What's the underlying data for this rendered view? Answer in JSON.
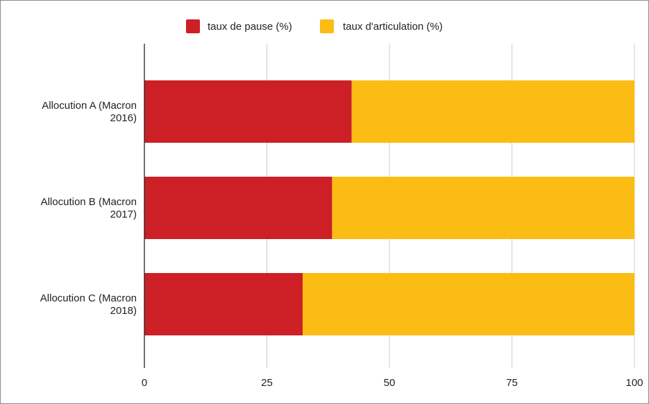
{
  "chart_data": {
    "type": "bar",
    "orientation": "horizontal",
    "stacked": true,
    "categories": [
      "Allocution A (Macron 2016)",
      "Allocution B (Macron 2017)",
      "Allocution C (Macron 2018)"
    ],
    "category_label_lines": [
      [
        "Allocution A (Macron",
        "2016)"
      ],
      [
        "Allocution B (Macron",
        "2017)"
      ],
      [
        "Allocution C (Macron",
        "2018)"
      ]
    ],
    "series": [
      {
        "name": "taux de pause (%)",
        "color": "#cc1f26",
        "values": [
          42.3,
          38.3,
          32.3
        ]
      },
      {
        "name": "taux d'articulation (%)",
        "color": "#fbbc14",
        "values": [
          57.7,
          61.7,
          67.7
        ]
      }
    ],
    "xlim": [
      0,
      100
    ],
    "xticks": [
      0,
      25,
      50,
      75,
      100
    ],
    "grid": true,
    "legend_position": "top-center",
    "title": "",
    "xlabel": "",
    "ylabel": ""
  }
}
